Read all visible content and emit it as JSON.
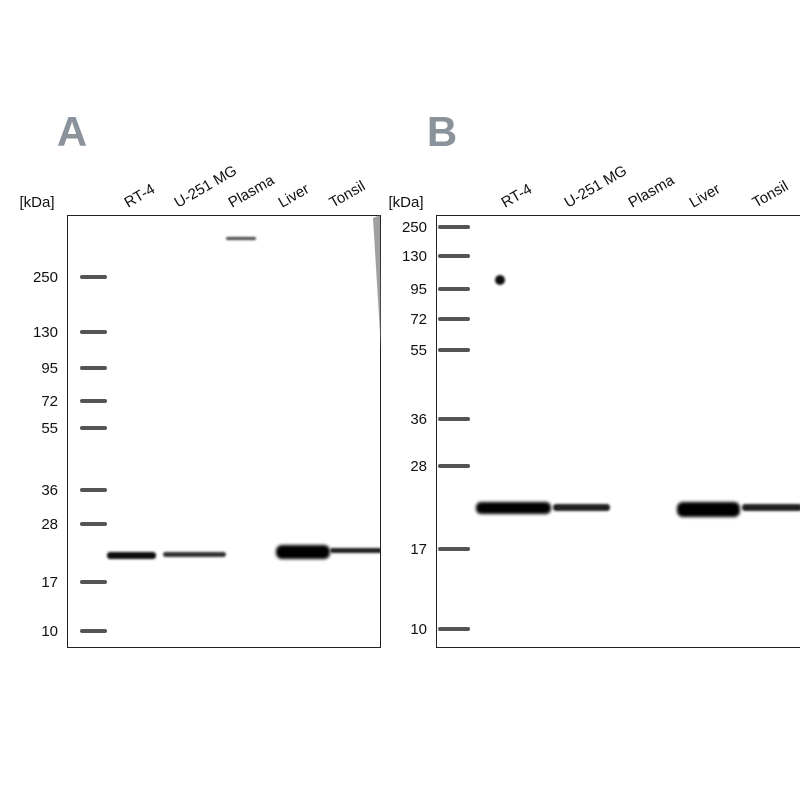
{
  "panels": [
    {
      "label": "A",
      "unit": "[kDa]",
      "lanes": [
        "RT-4",
        "U-251 MG",
        "Plasma",
        "Liver",
        "Tonsil"
      ],
      "markers": [
        "250",
        "130",
        "95",
        "72",
        "55",
        "36",
        "28",
        "17",
        "10"
      ]
    },
    {
      "label": "B",
      "unit": "[kDa]",
      "lanes": [
        "RT-4",
        "U-251 MG",
        "Plasma",
        "Liver",
        "Tonsil"
      ],
      "markers": [
        "250",
        "130",
        "95",
        "72",
        "55",
        "36",
        "28",
        "17",
        "10"
      ]
    }
  ]
}
